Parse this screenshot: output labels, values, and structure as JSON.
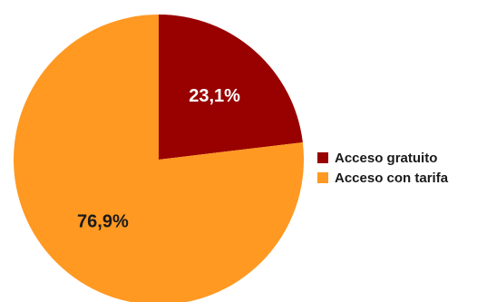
{
  "chart_data": {
    "type": "pie",
    "title": "",
    "slices": [
      {
        "label": "Acceso gratuito",
        "value": 23.1,
        "display": "23,1%",
        "color": "#990000",
        "text_color": "#ffffff"
      },
      {
        "label": "Acceso con tarifa",
        "value": 76.9,
        "display": "76,9%",
        "color": "#ff9922",
        "text_color": "#1a1a1a"
      }
    ],
    "legend_position": "right",
    "start": "top",
    "direction": "clockwise"
  }
}
